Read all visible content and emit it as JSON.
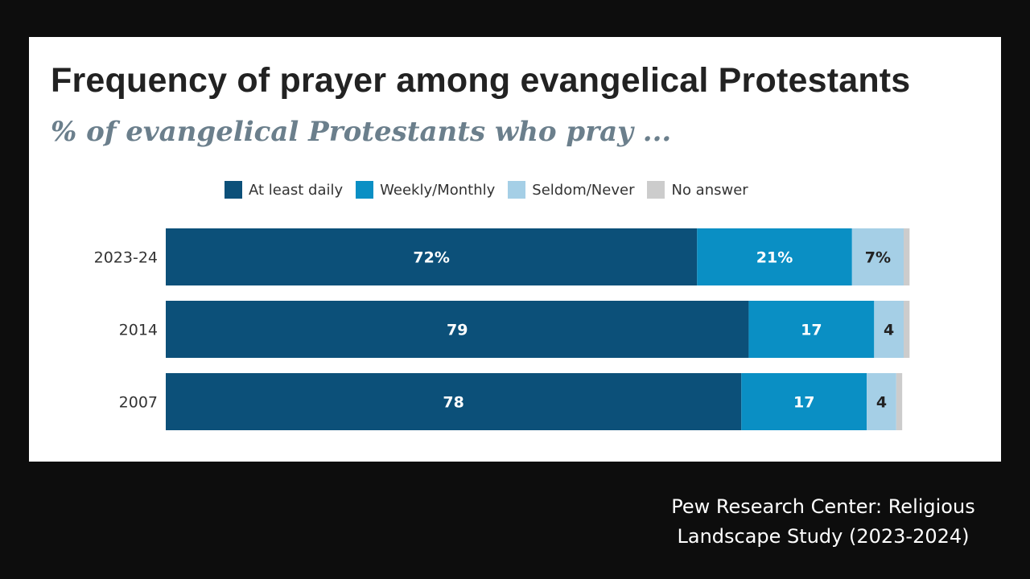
{
  "chart_data": {
    "type": "bar",
    "orientation": "horizontal-stacked",
    "title": "Frequency of prayer among evangelical Protestants",
    "subtitle": "% of evangelical Protestants who pray ...",
    "categories": [
      "2023-24",
      "2014",
      "2007"
    ],
    "series": [
      {
        "name": "At least daily",
        "color": "#0c5079",
        "values": [
          72,
          79,
          78
        ],
        "labels": [
          "72%",
          "79",
          "78"
        ]
      },
      {
        "name": "Weekly/Monthly",
        "color": "#0a8fc4",
        "values": [
          21,
          17,
          17
        ],
        "labels": [
          "21%",
          "17",
          "17"
        ]
      },
      {
        "name": "Seldom/Never",
        "color": "#a5cfe6",
        "values": [
          7,
          4,
          4
        ],
        "labels": [
          "7%",
          "4",
          "4"
        ]
      },
      {
        "name": "No answer",
        "color": "#cccccc",
        "values": [
          0.8,
          0.8,
          0.8
        ],
        "labels": [
          "",
          "",
          ""
        ]
      }
    ],
    "xlim": [
      0,
      100
    ],
    "grid": false,
    "legend_position": "top"
  },
  "source_text": {
    "line1": "Pew Research Center: Religious",
    "line2": "Landscape Study (2023-2024)"
  }
}
